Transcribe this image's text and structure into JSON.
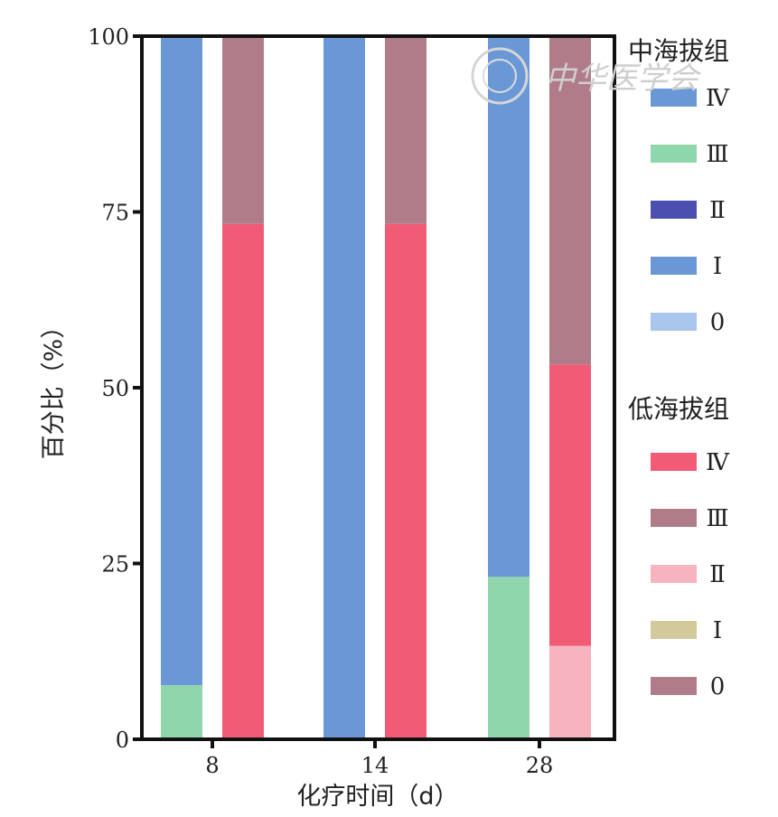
{
  "chart_data": {
    "type": "bar",
    "stacked": true,
    "categories": [
      "8",
      "14",
      "28"
    ],
    "xlabel": "化疗时间（d）",
    "ylabel": "百分比（%）",
    "ylim": [
      0,
      100
    ],
    "yticks": [
      0,
      25,
      50,
      75,
      100
    ],
    "grid": false,
    "legend_position": "right",
    "groups": [
      {
        "name": "中海拔组",
        "series": [
          {
            "name": "0",
            "color": "#a9c6ec",
            "values": [
              0,
              0,
              0
            ]
          },
          {
            "name": "Ⅰ",
            "color": "#6a98d6",
            "values": [
              0,
              0,
              0
            ]
          },
          {
            "name": "Ⅱ",
            "color": "#4a4fb0",
            "values": [
              0,
              0,
              0
            ]
          },
          {
            "name": "Ⅲ",
            "color": "#8fd6ad",
            "values": [
              7.7,
              0,
              23.1
            ]
          },
          {
            "name": "Ⅳ",
            "color": "#6a98d6",
            "values": [
              92.3,
              100,
              76.9
            ]
          }
        ]
      },
      {
        "name": "低海拔组",
        "series": [
          {
            "name": "0",
            "color": "#b07c8a",
            "values": [
              0,
              0,
              0
            ]
          },
          {
            "name": "Ⅰ",
            "color": "#d4c99a",
            "values": [
              0,
              0,
              0
            ]
          },
          {
            "name": "Ⅱ",
            "color": "#f7b4c0",
            "values": [
              0,
              0,
              13.3
            ]
          },
          {
            "name": "Ⅳ",
            "color": "#f25b76",
            "values": [
              73.3,
              73.3,
              40.0
            ]
          },
          {
            "name": "Ⅲ",
            "color": "#b07c8a",
            "values": [
              26.7,
              26.7,
              46.7
            ]
          }
        ]
      }
    ],
    "legend": [
      {
        "title": "中海拔组",
        "items": [
          {
            "label": "Ⅳ",
            "color": "#6a98d6"
          },
          {
            "label": "Ⅲ",
            "color": "#8fd6ad"
          },
          {
            "label": "Ⅱ",
            "color": "#4a4fb0"
          },
          {
            "label": "Ⅰ",
            "color": "#6a98d6"
          },
          {
            "label": "0",
            "color": "#a9c6ec"
          }
        ]
      },
      {
        "title": "低海拔组",
        "items": [
          {
            "label": "Ⅳ",
            "color": "#f25b76"
          },
          {
            "label": "Ⅲ",
            "color": "#b07c8a"
          },
          {
            "label": "Ⅱ",
            "color": "#f7b4c0"
          },
          {
            "label": "Ⅰ",
            "color": "#d4c99a"
          },
          {
            "label": "0",
            "color": "#b07c8a"
          }
        ]
      }
    ],
    "watermark": "中华医学会"
  }
}
